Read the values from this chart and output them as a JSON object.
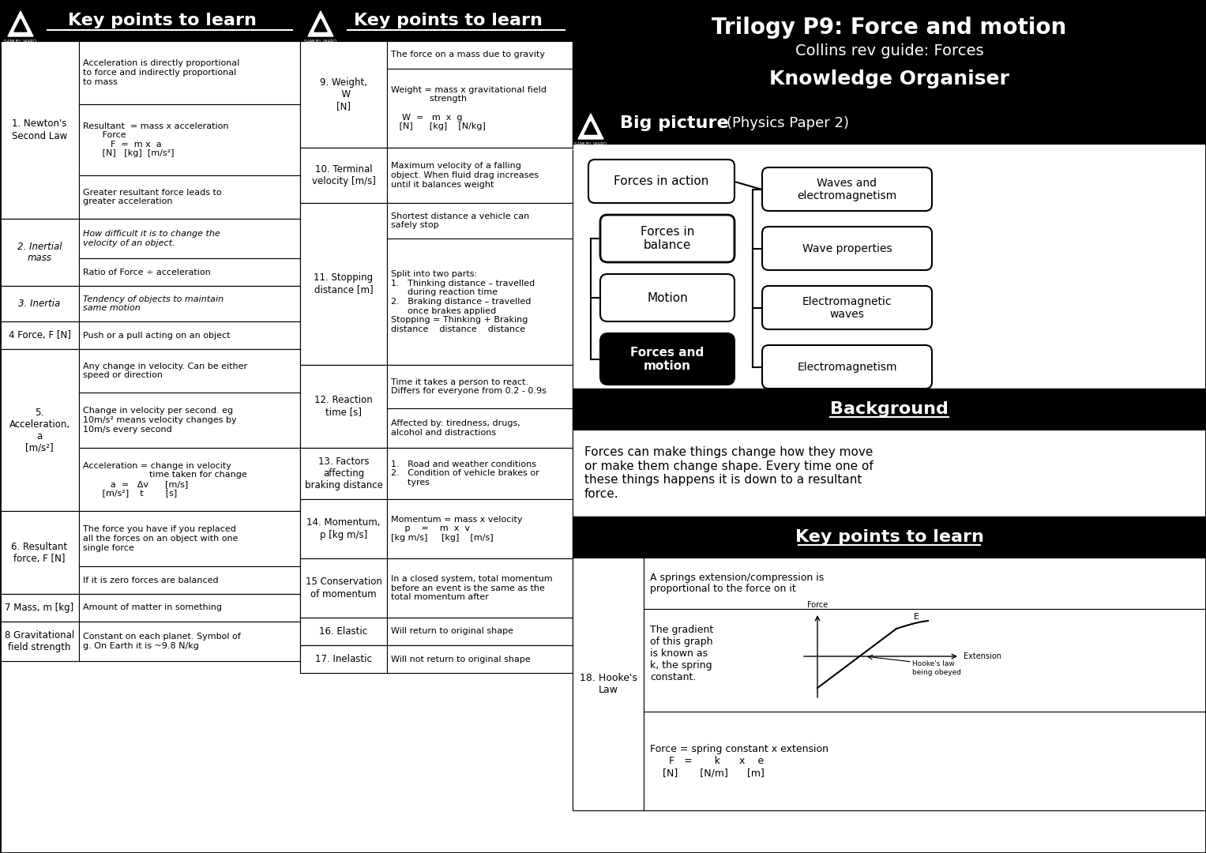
{
  "title_right": "Trilogy P9: Force and motion",
  "subtitle_right": "Collins rev guide: Forces",
  "subtitle2_right": "Knowledge Organiser",
  "bg_color": "#ffffff",
  "black": "#000000",
  "white": "#ffffff",
  "header_bg": "#000000",
  "header_text": "#ffffff"
}
